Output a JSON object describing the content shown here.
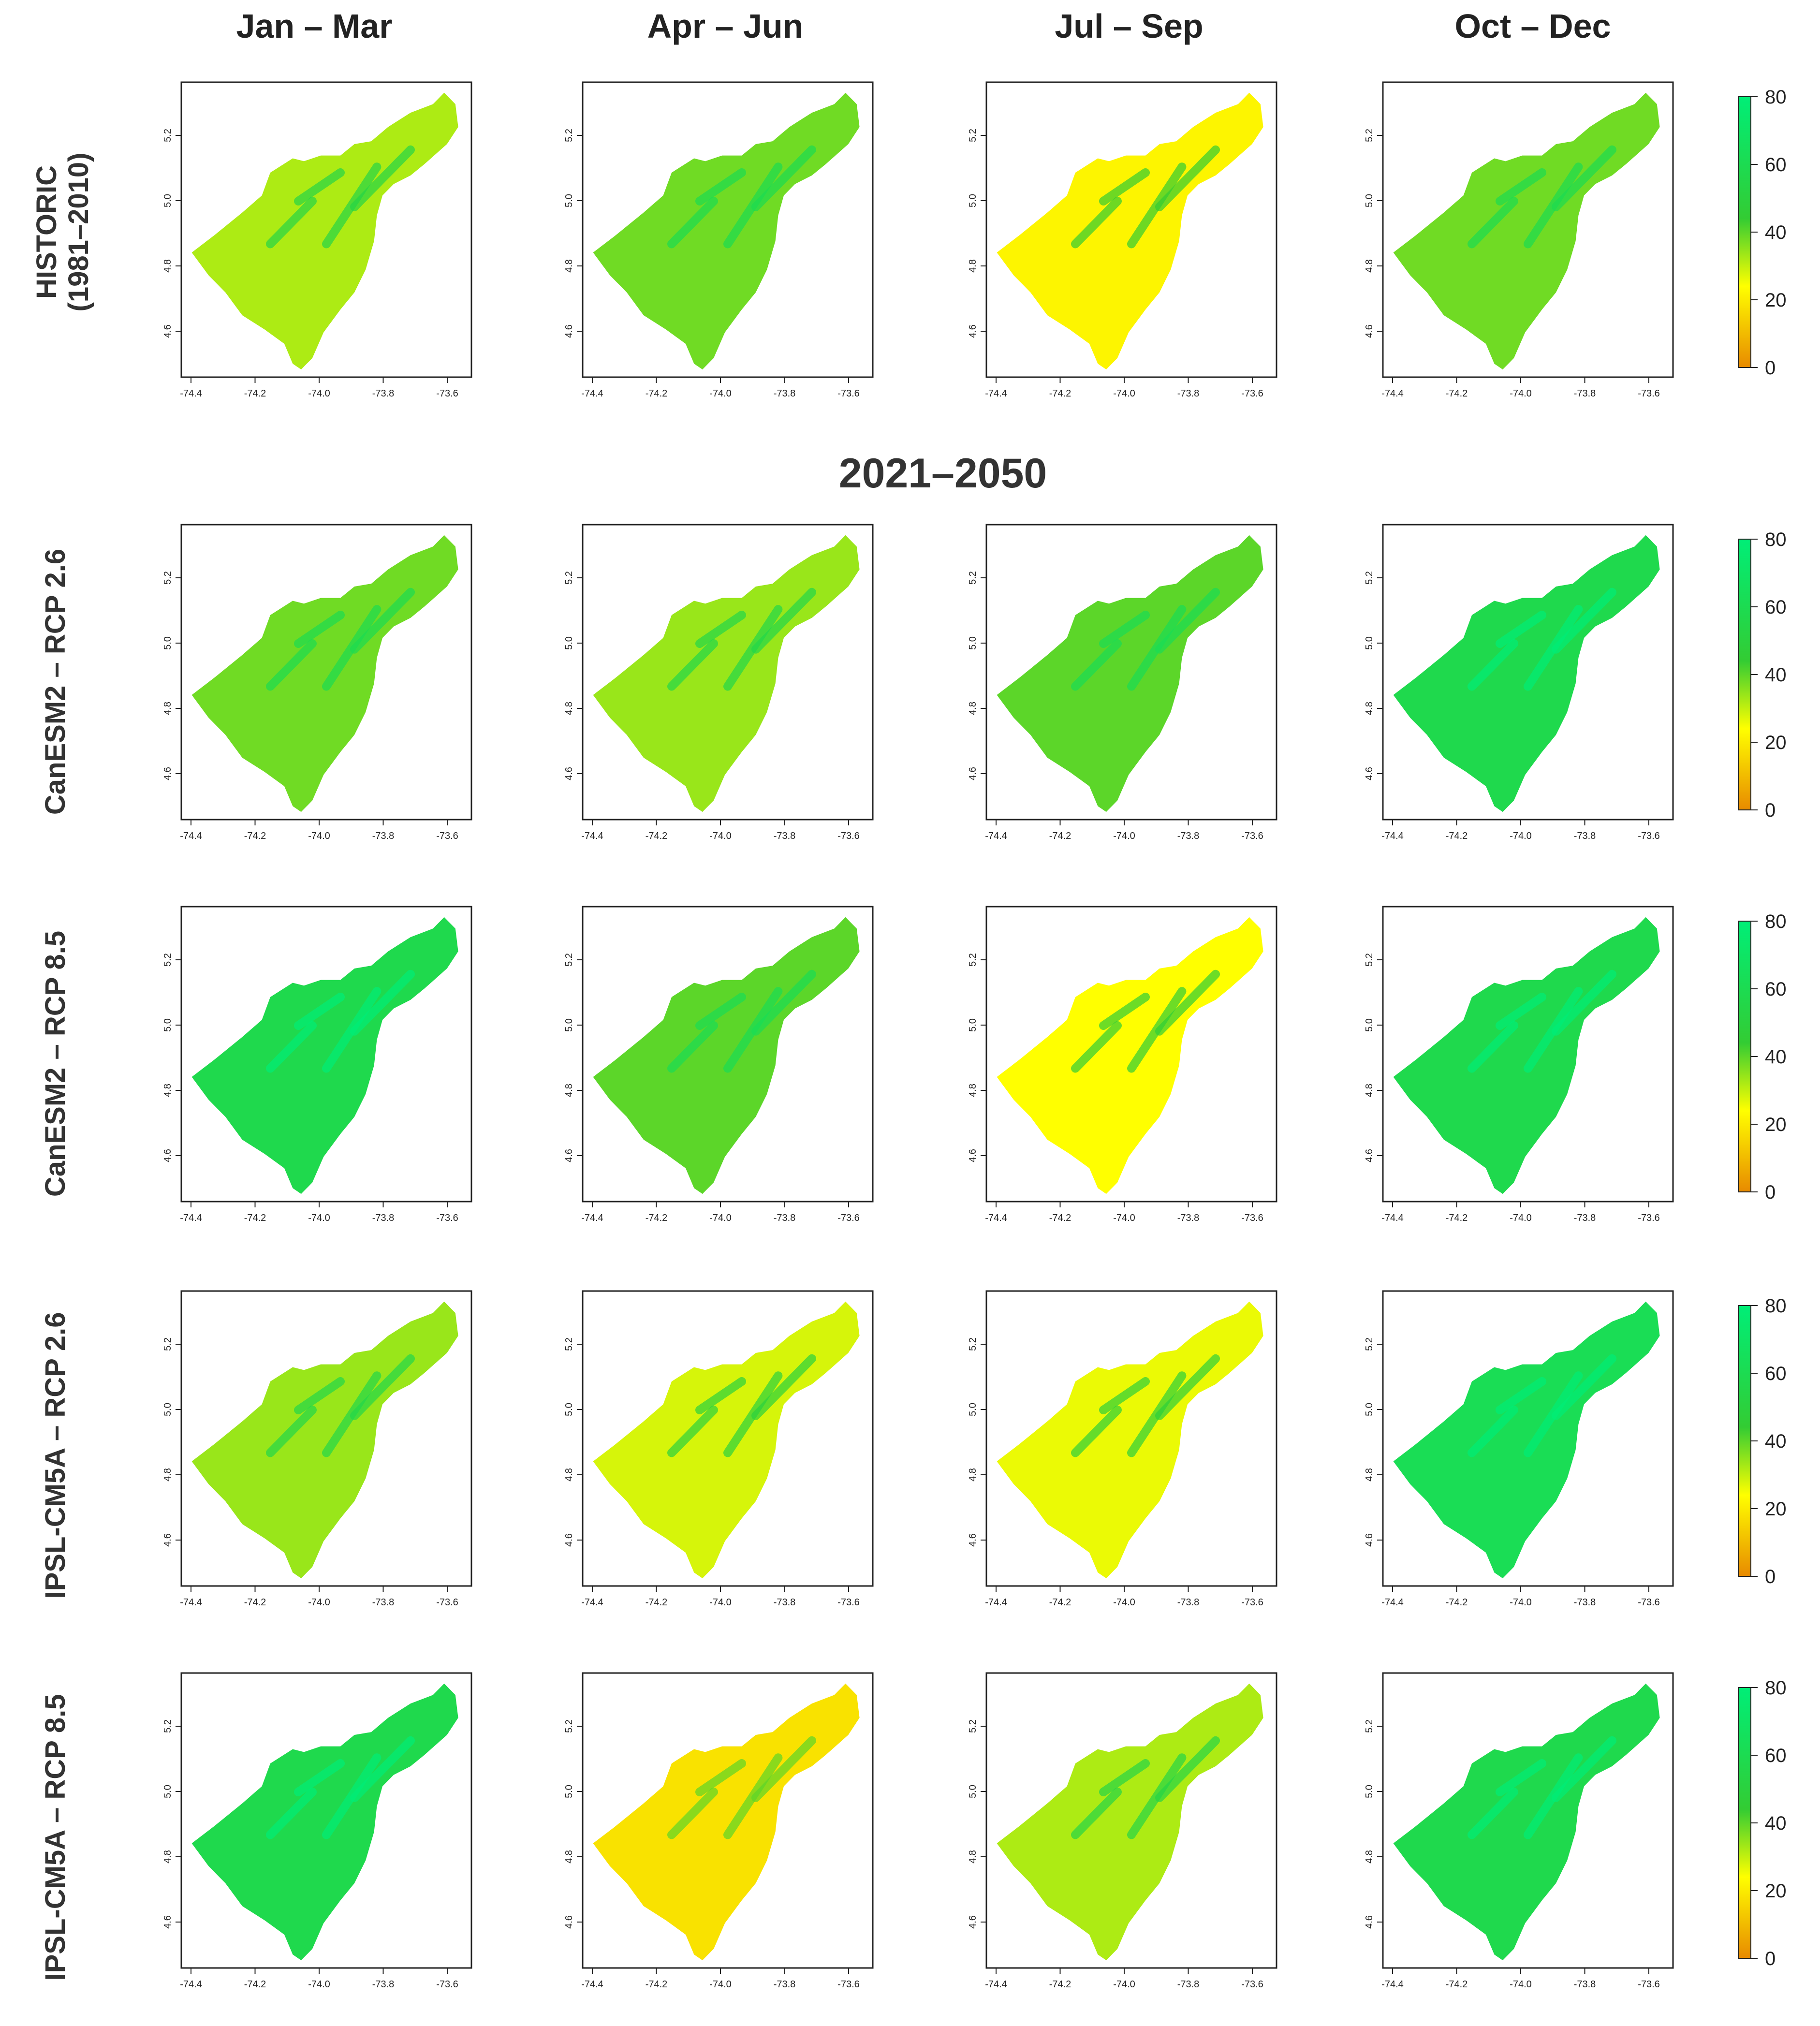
{
  "columns": [
    "Jan – Mar",
    "Apr – Jun",
    "Jul – Sep",
    "Oct – Dec"
  ],
  "period_title": "2021–2050",
  "rows": [
    {
      "label_lines": [
        "HISTORIC",
        "(1981–2010)"
      ],
      "panels": [
        32,
        38,
        22,
        38
      ]
    },
    {
      "label_lines": [
        "CanESM2 – RCP 2.6"
      ],
      "panels": [
        38,
        34,
        40,
        58
      ]
    },
    {
      "label_lines": [
        "CanESM2 – RCP 8.5"
      ],
      "panels": [
        58,
        40,
        24,
        58
      ]
    },
    {
      "label_lines": [
        "IPSL-CM5A – RCP 2.6"
      ],
      "panels": [
        34,
        28,
        26,
        62
      ]
    },
    {
      "label_lines": [
        "IPSL-CM5A – RCP 8.5"
      ],
      "panels": [
        58,
        18,
        32,
        58
      ]
    }
  ],
  "colorbar": {
    "ticks": [
      "80",
      "60",
      "40",
      "20",
      "0"
    ],
    "min": 0,
    "max": 80,
    "colors": {
      "low": "#e88a00",
      "mid_low": "#ffff00",
      "mid_high": "#33cc33",
      "high": "#00ee77"
    }
  },
  "axes": {
    "x_ticks": [
      "-74.4",
      "-74.2",
      "-74.0",
      "-73.8",
      "-73.6"
    ],
    "y_ticks": [
      "5.2",
      "5.0",
      "4.8",
      "4.6"
    ]
  },
  "palette": {
    "orange": "#f2a500",
    "yellow": "#f0f020",
    "lime": "#a6e635",
    "green": "#2ee018"
  }
}
